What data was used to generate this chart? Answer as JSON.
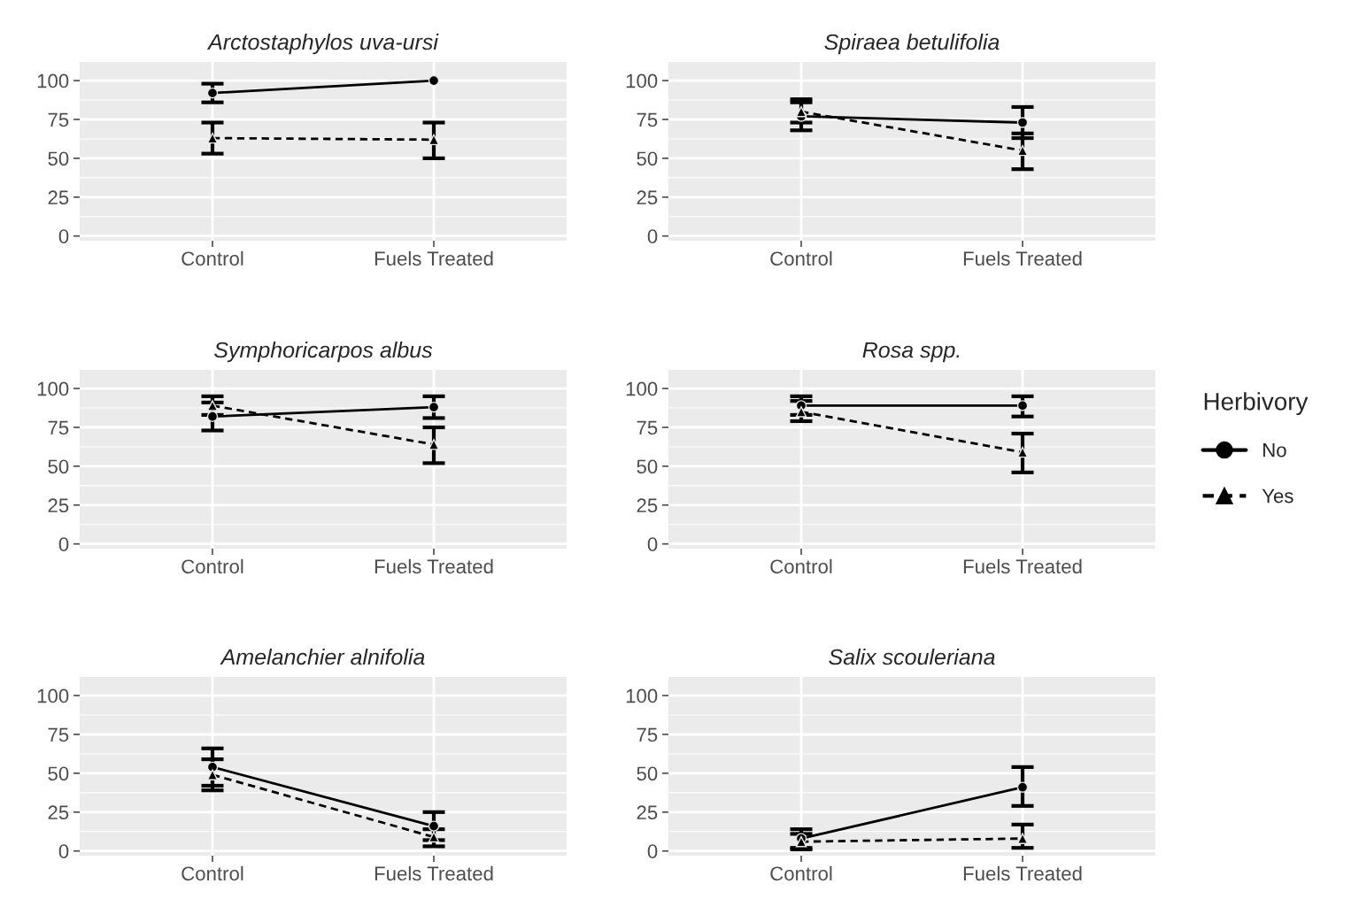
{
  "chart_data": [
    {
      "type": "line",
      "title": "Arctostaphylos uva-ursi",
      "categories": [
        "Control",
        "Fuels Treated"
      ],
      "ylim": [
        -3,
        112
      ],
      "yticks": [
        0,
        25,
        50,
        75,
        100
      ],
      "grid": true,
      "legend": "right",
      "legend_title": "Herbivory",
      "series": [
        {
          "name": "No",
          "color": "#000000",
          "marker": "circle",
          "line_style": "solid",
          "values": [
            92,
            100
          ],
          "errors": [
            [
              86,
              98
            ],
            null
          ]
        },
        {
          "name": "Yes",
          "color": "#000000",
          "marker": "triangle",
          "line_style": "dashed",
          "values": [
            63,
            62
          ],
          "errors": [
            [
              53,
              73
            ],
            [
              50,
              73
            ]
          ]
        }
      ]
    },
    {
      "type": "line",
      "title": "Spiraea betulifolia",
      "categories": [
        "Control",
        "Fuels Treated"
      ],
      "ylim": [
        -3,
        112
      ],
      "yticks": [
        0,
        25,
        50,
        75,
        100
      ],
      "grid": true,
      "series": [
        {
          "color": "#000000",
          "marker": "circle",
          "line_style": "solid",
          "values": [
            77,
            73
          ],
          "errors": [
            [
              68,
              86
            ],
            [
              63,
              83
            ]
          ]
        },
        {
          "color": "#000000",
          "marker": "triangle",
          "line_style": "dashed",
          "values": [
            80,
            55
          ],
          "errors": [
            [
              73,
              88
            ],
            [
              43,
              66
            ]
          ]
        }
      ]
    },
    {
      "type": "line",
      "title": "Symphoricarpos albus",
      "categories": [
        "Control",
        "Fuels Treated"
      ],
      "ylim": [
        -3,
        112
      ],
      "yticks": [
        0,
        25,
        50,
        75,
        100
      ],
      "grid": true,
      "series": [
        {
          "color": "#000000",
          "marker": "circle",
          "line_style": "solid",
          "values": [
            82,
            88
          ],
          "errors": [
            [
              73,
              91
            ],
            [
              81,
              95
            ]
          ]
        },
        {
          "color": "#000000",
          "marker": "triangle",
          "line_style": "dashed",
          "values": [
            89,
            64
          ],
          "errors": [
            [
              83,
              95
            ],
            [
              52,
              75
            ]
          ]
        }
      ]
    },
    {
      "type": "line",
      "title": "Rosa spp.",
      "categories": [
        "Control",
        "Fuels Treated"
      ],
      "ylim": [
        -3,
        112
      ],
      "yticks": [
        0,
        25,
        50,
        75,
        100
      ],
      "grid": true,
      "series": [
        {
          "color": "#000000",
          "marker": "circle",
          "line_style": "solid",
          "values": [
            89,
            89
          ],
          "errors": [
            [
              83,
              95
            ],
            [
              82,
              95
            ]
          ]
        },
        {
          "color": "#000000",
          "marker": "triangle",
          "line_style": "dashed",
          "values": [
            85,
            59
          ],
          "errors": [
            [
              79,
              92
            ],
            [
              46,
              71
            ]
          ]
        }
      ]
    },
    {
      "type": "line",
      "title": "Amelanchier alnifolia",
      "categories": [
        "Control",
        "Fuels Treated"
      ],
      "ylim": [
        -3,
        112
      ],
      "yticks": [
        0,
        25,
        50,
        75,
        100
      ],
      "grid": true,
      "series": [
        {
          "color": "#000000",
          "marker": "circle",
          "line_style": "solid",
          "values": [
            54,
            16
          ],
          "errors": [
            [
              42,
              66
            ],
            [
              7,
              25
            ]
          ]
        },
        {
          "color": "#000000",
          "marker": "triangle",
          "line_style": "dashed",
          "values": [
            49,
            9
          ],
          "errors": [
            [
              39,
              59
            ],
            [
              3,
              14
            ]
          ]
        }
      ]
    },
    {
      "type": "line",
      "title": "Salix scouleriana",
      "categories": [
        "Control",
        "Fuels Treated"
      ],
      "ylim": [
        -3,
        112
      ],
      "yticks": [
        0,
        25,
        50,
        75,
        100
      ],
      "grid": true,
      "series": [
        {
          "color": "#000000",
          "marker": "circle",
          "line_style": "solid",
          "values": [
            8,
            41
          ],
          "errors": [
            [
              2,
              14
            ],
            [
              29,
              54
            ]
          ]
        },
        {
          "color": "#000000",
          "marker": "triangle",
          "line_style": "dashed",
          "values": [
            6,
            8
          ],
          "errors": [
            [
              1,
              11
            ],
            [
              2,
              17
            ]
          ]
        }
      ]
    }
  ]
}
